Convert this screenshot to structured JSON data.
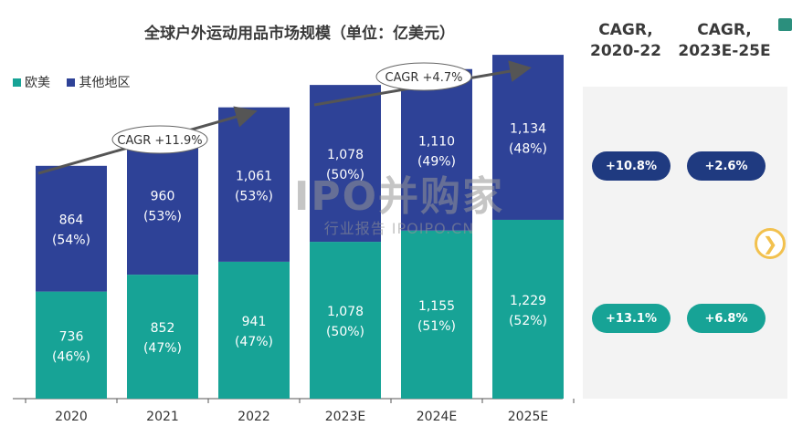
{
  "chart_data": {
    "type": "bar",
    "stacked": true,
    "title": "全球户外运动用品市场规模（单位：亿美元）",
    "categories": [
      "2020",
      "2021",
      "2022",
      "2023E",
      "2024E",
      "2025E"
    ],
    "series": [
      {
        "name": "欧美",
        "color": "#17a396",
        "values": [
          736,
          852,
          941,
          1078,
          1155,
          1229
        ],
        "labels": [
          "736",
          "852",
          "941",
          "1,078",
          "1,155",
          "1,229"
        ],
        "shares": [
          "(46%)",
          "(47%)",
          "(47%)",
          "(50%)",
          "(51%)",
          "(52%)"
        ]
      },
      {
        "name": "其他地区",
        "color": "#2e4297",
        "values": [
          864,
          960,
          1061,
          1078,
          1110,
          1134
        ],
        "labels": [
          "864",
          "960",
          "1,061",
          "1,078",
          "1,110",
          "1,134"
        ],
        "shares": [
          "(54%)",
          "(53%)",
          "(53%)",
          "(50%)",
          "(49%)",
          "(48%)"
        ]
      }
    ],
    "annotations": [
      {
        "text": "CAGR +11.9%",
        "span": [
          "2020",
          "2022"
        ]
      },
      {
        "text": "CAGR +4.7%",
        "span": [
          "2023E",
          "2025E"
        ]
      }
    ],
    "legend_position": "top-left"
  },
  "cagr_panel": {
    "col1_header": [
      "CAGR,",
      "2020-22"
    ],
    "col2_header": [
      "CAGR,",
      "2023E-25E"
    ],
    "other_regions": [
      "+10.8%",
      "+2.6%"
    ],
    "europe_america": [
      "+13.1%",
      "+6.8%"
    ],
    "colors": {
      "navy": "#1f3a80",
      "teal": "#17a396"
    }
  },
  "watermark": {
    "main": "IPO并购家",
    "sub": "行业报告 IPOIPO.CN"
  },
  "icons": {
    "next": "chevron-right-icon"
  }
}
